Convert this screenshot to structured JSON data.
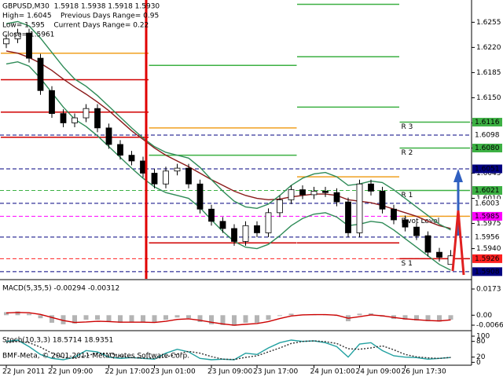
{
  "chart_data": {
    "type": "candlestick",
    "header": [
      "GBPUSD,M30  1.5918 1.5938 1.5918 1.5930",
      "High= 1.6045    Previous Days Range= 0.95",
      "Low= 1.595    Current Days Range= 0.22",
      "Close= 1.5961"
    ],
    "copyright": "BMF-Meta, © 2001-2011 MetaQuotes Software Corp.",
    "categories": [
      "22 Jun 2011",
      null,
      null,
      null,
      "22 Jun 09:00",
      null,
      null,
      null,
      null,
      "22 Jun 17:00",
      null,
      null,
      null,
      "23 Jun 01:00",
      null,
      null,
      null,
      null,
      "23 Jun 09:00",
      null,
      null,
      null,
      "23 Jun 17:00",
      null,
      null,
      null,
      null,
      "24 Jun 01:00",
      null,
      null,
      null,
      "24 Jun 09:00",
      null,
      null,
      null,
      "26 Jun 17:30",
      null,
      null,
      null,
      null
    ],
    "open": [
      1.6225,
      1.6232,
      1.624,
      1.6205,
      1.616,
      1.6128,
      1.6115,
      1.6122,
      1.6135,
      1.6108,
      1.6085,
      1.607,
      1.6062,
      1.6045,
      1.603,
      1.6048,
      1.6052,
      1.603,
      1.5995,
      1.5978,
      1.5968,
      1.595,
      1.5972,
      1.5962,
      1.599,
      1.6008,
      1.6022,
      1.6015,
      1.602,
      1.6018,
      1.6005,
      1.5962,
      1.603,
      1.602,
      1.5995,
      1.598,
      1.597,
      1.5958,
      1.5935,
      1.5918
    ],
    "high": [
      1.6238,
      1.6246,
      1.6246,
      1.6211,
      1.6166,
      1.6134,
      1.6128,
      1.6141,
      1.6141,
      1.6114,
      1.6091,
      1.6076,
      1.6068,
      1.6051,
      1.6054,
      1.6058,
      1.6058,
      1.6036,
      1.6001,
      1.5984,
      1.5974,
      1.5978,
      1.5978,
      1.5996,
      1.6014,
      1.6028,
      1.6028,
      1.6026,
      1.6026,
      1.6024,
      1.6011,
      1.6036,
      1.6036,
      1.6026,
      1.6001,
      1.5986,
      1.5976,
      1.5964,
      1.5941,
      1.5938
    ],
    "low": [
      1.6219,
      1.6226,
      1.6199,
      1.6154,
      1.6122,
      1.6109,
      1.6109,
      1.6116,
      1.6102,
      1.6079,
      1.6064,
      1.6056,
      1.6039,
      1.6024,
      1.6024,
      1.6042,
      1.6024,
      1.5989,
      1.5972,
      1.5962,
      1.5944,
      1.5944,
      1.5956,
      1.5956,
      1.5984,
      1.6002,
      1.6009,
      1.6009,
      1.6012,
      1.5999,
      1.5956,
      1.5956,
      1.6014,
      1.5989,
      1.5974,
      1.5964,
      1.5952,
      1.5929,
      1.5922,
      1.5918
    ],
    "close": [
      1.6232,
      1.624,
      1.6205,
      1.616,
      1.6128,
      1.6115,
      1.6122,
      1.6135,
      1.6108,
      1.6085,
      1.607,
      1.6062,
      1.6045,
      1.603,
      1.6048,
      1.6052,
      1.603,
      1.5995,
      1.5978,
      1.5968,
      1.595,
      1.5972,
      1.5962,
      1.599,
      1.6008,
      1.6022,
      1.6015,
      1.602,
      1.6018,
      1.6005,
      1.5962,
      1.603,
      1.602,
      1.5995,
      1.598,
      1.597,
      1.5958,
      1.5935,
      1.5928,
      1.593
    ],
    "up_color": "#ffffff",
    "down_color": "#000000",
    "ylim": [
      1.5898,
      1.6286
    ],
    "yticks": [
      1.6255,
      {
        "value": 1.622,
        "label": "1.6220"
      },
      1.6185,
      {
        "value": 1.615,
        "label": "1.6150"
      },
      1.6115,
      {
        "value": 1.608,
        "label": "1.6080"
      },
      1.6045,
      {
        "value": 1.601,
        "label": "1.6010"
      },
      1.5975,
      {
        "value": 1.594,
        "label": "1.5940"
      }
    ],
    "overlays": [
      {
        "color": "#8b1a1a",
        "values": [
          1.6215,
          1.6212,
          1.6206,
          1.6198,
          1.6188,
          1.6176,
          1.6165,
          1.6155,
          1.6144,
          1.6132,
          1.6118,
          1.6104,
          1.6092,
          1.608,
          1.607,
          1.6062,
          1.6054,
          1.6045,
          1.6036,
          1.6028,
          1.602,
          1.6014,
          1.601,
          1.6008,
          1.6009,
          1.6012,
          1.6014,
          1.6016,
          1.6016,
          1.6014,
          1.6008,
          1.6006,
          1.6004,
          1.6,
          1.5995,
          1.599,
          1.5985,
          1.5978,
          1.5972,
          1.5968
        ]
      },
      {
        "color": "#2e8b57",
        "values": [
          1.6253,
          1.6256,
          1.625,
          1.6233,
          1.6213,
          1.6193,
          1.6176,
          1.6166,
          1.6153,
          1.6138,
          1.6123,
          1.6108,
          1.6094,
          1.6082,
          1.6074,
          1.607,
          1.6066,
          1.6053,
          1.6036,
          1.602,
          1.6006,
          1.5998,
          1.5996,
          1.6002,
          1.6014,
          1.6028,
          1.6038,
          1.6044,
          1.6046,
          1.604,
          1.6028,
          1.603,
          1.6034,
          1.6032,
          1.6022,
          1.601,
          1.5998,
          1.5986,
          1.5974,
          1.5966
        ]
      },
      {
        "color": "#2e8b57",
        "values": [
          1.6197,
          1.62,
          1.6194,
          1.6177,
          1.6157,
          1.6137,
          1.612,
          1.611,
          1.6097,
          1.6082,
          1.6067,
          1.6052,
          1.6038,
          1.6026,
          1.6018,
          1.6014,
          1.601,
          1.5997,
          1.598,
          1.5964,
          1.595,
          1.5942,
          1.594,
          1.5946,
          1.5958,
          1.5972,
          1.5982,
          1.5988,
          1.599,
          1.5984,
          1.5972,
          1.5974,
          1.5978,
          1.5976,
          1.5966,
          1.5954,
          1.5942,
          1.593,
          1.5918,
          1.591
        ]
      }
    ],
    "pivots": {
      "colors": {
        "r": "#3cb043",
        "p": "#f0a020",
        "s": "#d00000"
      },
      "label_color": "#d8b040",
      "days": [
        {
          "start": 0,
          "end": 12,
          "levels": [
            {
              "value": 1.6212,
              "kind": "p"
            },
            {
              "value": 1.6175,
              "kind": "s"
            },
            {
              "value": 1.613,
              "kind": "s"
            },
            {
              "value": 1.6095,
              "kind": "s"
            }
          ]
        },
        {
          "start": 13,
          "end": 25,
          "levels": [
            {
              "value": 1.6195,
              "kind": "r"
            },
            {
              "value": 1.6108,
              "kind": "p"
            },
            {
              "value": 1.607,
              "kind": "r"
            },
            {
              "value": 1.5948,
              "kind": "s"
            }
          ]
        },
        {
          "start": 26,
          "end": 34,
          "levels": [
            {
              "value": 1.628,
              "kind": "r"
            },
            {
              "value": 1.6207,
              "kind": "r"
            },
            {
              "value": 1.6137,
              "kind": "r"
            },
            {
              "value": 1.604,
              "kind": "p"
            },
            {
              "value": 1.5948,
              "kind": "s"
            }
          ]
        },
        {
          "start": 35,
          "end": 39,
          "levels": [
            {
              "value": 1.6116,
              "kind": "r",
              "name": "R 3"
            },
            {
              "value": 1.608,
              "kind": "r",
              "name": "R 2"
            },
            {
              "value": 1.6021,
              "kind": "r",
              "name": "R 1"
            },
            {
              "value": 1.5985,
              "kind": "p",
              "name": "Pivot Level"
            },
            {
              "value": 1.5926,
              "kind": "s",
              "name": "S 1"
            }
          ]
        }
      ]
    },
    "price_labels": [
      {
        "value": 1.6116,
        "bg": "#3cb043",
        "fg": "#ffffff"
      },
      {
        "value": 1.6098,
        "bg": "#ffffff",
        "fg": "#000000",
        "line": "#000080"
      },
      {
        "value": 1.608,
        "label": "1.6080",
        "bg": "#3cb043",
        "fg": "#ffffff"
      },
      {
        "value": 1.6051,
        "bg": "#000080",
        "fg": "#ffffff",
        "line": "#000080"
      },
      {
        "value": 1.6021,
        "bg": "#3cb043",
        "fg": "#ffffff",
        "line": "#3cb043"
      },
      {
        "value": 1.6003,
        "bg": "#ffffff",
        "fg": "#000000",
        "line": "#000080"
      },
      {
        "value": 1.5985,
        "bg": "#ff00ff",
        "fg": "#ffffff",
        "line": "#ff00ff"
      },
      {
        "value": 1.5956,
        "bg": "#ffffff",
        "fg": "#000000",
        "line": "#000080"
      },
      {
        "value": 1.5926,
        "bg": "#ff2020",
        "fg": "#ffffff",
        "line": "#ff2020"
      },
      {
        "value": 1.5908,
        "bg": "#000080",
        "fg": "#ffffff",
        "line": "#000080"
      }
    ],
    "macd": {
      "title": "MACD(5,35,5) -0.00294 -0.00312",
      "values": [
        0.002,
        0.0025,
        0.001,
        -0.002,
        -0.005,
        -0.006,
        -0.0055,
        -0.003,
        -0.003,
        -0.0045,
        -0.005,
        -0.0045,
        -0.0045,
        -0.005,
        -0.003,
        -0.0015,
        -0.002,
        -0.0045,
        -0.006,
        -0.0065,
        -0.007,
        -0.005,
        -0.005,
        -0.003,
        -0.0005,
        0.001,
        0.0005,
        0.0005,
        0.0003,
        -0.0005,
        -0.004,
        0.001,
        0.0012,
        -0.001,
        -0.0025,
        -0.003,
        -0.0035,
        -0.004,
        -0.0042,
        -0.00294
      ],
      "signal": [
        0.0015,
        0.0018,
        0.0016,
        0.0005,
        -0.0015,
        -0.0035,
        -0.0048,
        -0.0045,
        -0.004,
        -0.0042,
        -0.0046,
        -0.0046,
        -0.0046,
        -0.0048,
        -0.004,
        -0.0028,
        -0.0024,
        -0.0034,
        -0.0047,
        -0.0058,
        -0.0066,
        -0.006,
        -0.0055,
        -0.0042,
        -0.0022,
        -0.0005,
        0.0002,
        0.0004,
        0.0004,
        0.0,
        -0.002,
        -0.001,
        0.0002,
        -0.0004,
        -0.0015,
        -0.0024,
        -0.003,
        -0.0035,
        -0.0038,
        -0.00312
      ],
      "hist_color": "#b4b4b4",
      "signal_color": "#cc0000",
      "ylim": [
        -0.0097,
        0.023
      ],
      "yticks": [
        0.0173,
        {
          "value": 0,
          "label": "0.00"
        },
        -0.0066
      ]
    },
    "stoch": {
      "title": "Stoch(10,3,3) 18.5714 18.9351",
      "k": [
        80,
        85,
        60,
        30,
        15,
        10,
        20,
        45,
        40,
        20,
        15,
        18,
        15,
        12,
        35,
        50,
        40,
        15,
        10,
        12,
        10,
        35,
        30,
        55,
        75,
        85,
        80,
        82,
        75,
        60,
        20,
        70,
        75,
        45,
        25,
        20,
        18,
        12,
        15,
        18.5714
      ],
      "d": [
        75,
        80,
        75,
        58,
        35,
        18,
        15,
        25,
        35,
        35,
        25,
        18,
        16,
        15,
        20,
        32,
        42,
        35,
        22,
        12,
        11,
        19,
        25,
        40,
        55,
        72,
        80,
        82,
        79,
        72,
        52,
        50,
        55,
        63,
        48,
        30,
        21,
        17,
        15,
        18.9351
      ],
      "k_color": "#20a0a0",
      "d_color": "#303030",
      "ylim": [
        -8,
        112
      ],
      "yticks": [
        100,
        80,
        20,
        0
      ]
    }
  }
}
